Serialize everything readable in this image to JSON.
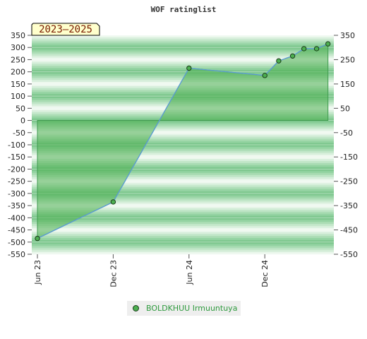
{
  "chart_data": {
    "type": "area",
    "title": "WOF ratinglist",
    "period_badge": "2023–2025",
    "y_ticks_left": [
      350,
      300,
      250,
      200,
      150,
      100,
      50,
      0,
      -50,
      -100,
      -150,
      -200,
      -250,
      -300,
      -350,
      -400,
      -450,
      -500,
      -550
    ],
    "y_ticks_right": [
      350,
      250,
      150,
      50,
      -50,
      -150,
      -250,
      -350,
      -450,
      -550
    ],
    "ylim": [
      -550,
      350
    ],
    "x_ticks": [
      "Jun 23",
      "Dec 23",
      "Jun 24",
      "Dec 24"
    ],
    "x_tick_positions": [
      0,
      6,
      12,
      18
    ],
    "xlim": [
      0,
      23.5
    ],
    "series": [
      {
        "name": "BOLDKHUU Irmuuntuya",
        "x": [
          0,
          6,
          12,
          18,
          19.1,
          20.2,
          21.1,
          22.1,
          23.0
        ],
        "values": [
          -485,
          -335,
          215,
          185,
          245,
          265,
          295,
          295,
          315
        ]
      }
    ],
    "colors": {
      "line": "#5b9bd5",
      "fill": "#4caf50",
      "marker": "#4caf50",
      "marker_stroke": "#1a3b1a",
      "badge_bg": "#ffffcc",
      "legend_text": "#2e9a3e"
    },
    "legend_placement": "bottom-center"
  }
}
